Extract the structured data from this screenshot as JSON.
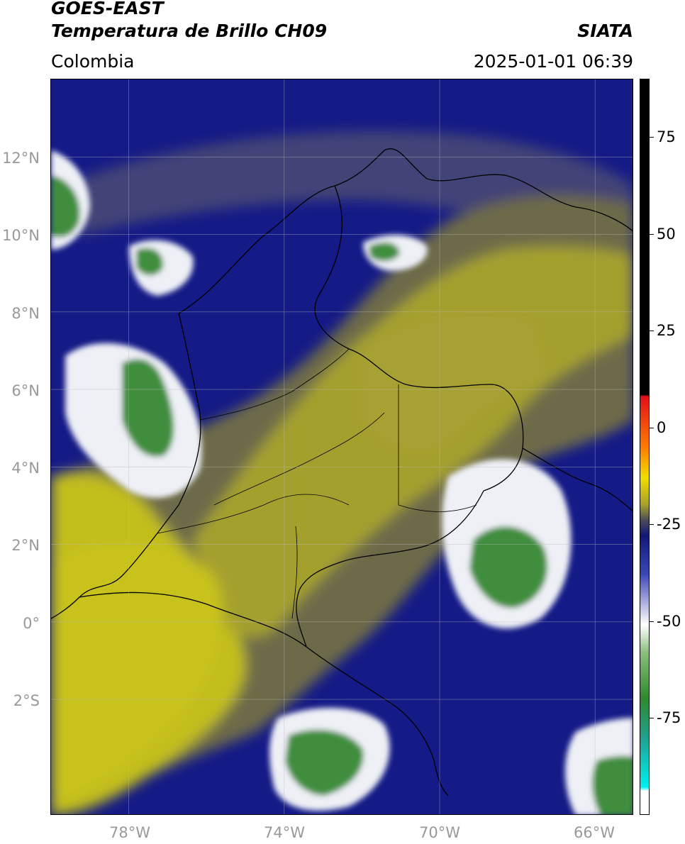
{
  "header": {
    "satellite": "GOES-EAST",
    "product": "Temperatura de Brillo CH09",
    "region": "Colombia",
    "brand": "SIATA",
    "datetime": "2025-01-01 06:39"
  },
  "map": {
    "extent": {
      "lon_min": -80.0,
      "lon_max": -65.0,
      "lat_min": -5.0,
      "lat_max": 14.0
    },
    "lat_ticks": [
      "12°N",
      "10°N",
      "8°N",
      "6°N",
      "4°N",
      "2°N",
      "0°",
      "2°S"
    ],
    "lat_values": [
      12,
      10,
      8,
      6,
      4,
      2,
      0,
      -2
    ],
    "lon_ticks": [
      "78°W",
      "74°W",
      "70°W",
      "66°W"
    ],
    "lon_values": [
      -78,
      -74,
      -70,
      -66
    ],
    "grid": true,
    "colors": {
      "warm_olive": "#c2be1e",
      "mid_gray_olive": "#6b6a52",
      "cold_navy": "#141a86",
      "cold_white": "#eef0f6",
      "very_cold_green": "#3f8e3e",
      "coastline": "#000000"
    }
  },
  "colorbar": {
    "ticks": [
      "75",
      "50",
      "25",
      "0",
      "-25",
      "-50",
      "-75"
    ],
    "tick_values": [
      75,
      50,
      25,
      0,
      -25,
      -50,
      -75
    ],
    "range": [
      -100,
      90
    ],
    "stops": [
      {
        "value": 90,
        "color": "#000000"
      },
      {
        "value": 8.5,
        "color": "#000000"
      },
      {
        "value": 8,
        "color": "#e2101a"
      },
      {
        "value": -5,
        "color": "#ff7a00"
      },
      {
        "value": -13,
        "color": "#f1df00"
      },
      {
        "value": -20,
        "color": "#a7a02a"
      },
      {
        "value": -24,
        "color": "#4a4a58"
      },
      {
        "value": -28,
        "color": "#101878"
      },
      {
        "value": -38,
        "color": "#3d48b8"
      },
      {
        "value": -47,
        "color": "#c6c8e8"
      },
      {
        "value": -51,
        "color": "#ffffff"
      },
      {
        "value": -58,
        "color": "#8ebf80"
      },
      {
        "value": -70,
        "color": "#2e8a2c"
      },
      {
        "value": -80,
        "color": "#20a08c"
      },
      {
        "value": -93,
        "color": "#00f0f0"
      },
      {
        "value": -94,
        "color": "#ffffff"
      },
      {
        "value": -100,
        "color": "#ffffff"
      }
    ]
  }
}
